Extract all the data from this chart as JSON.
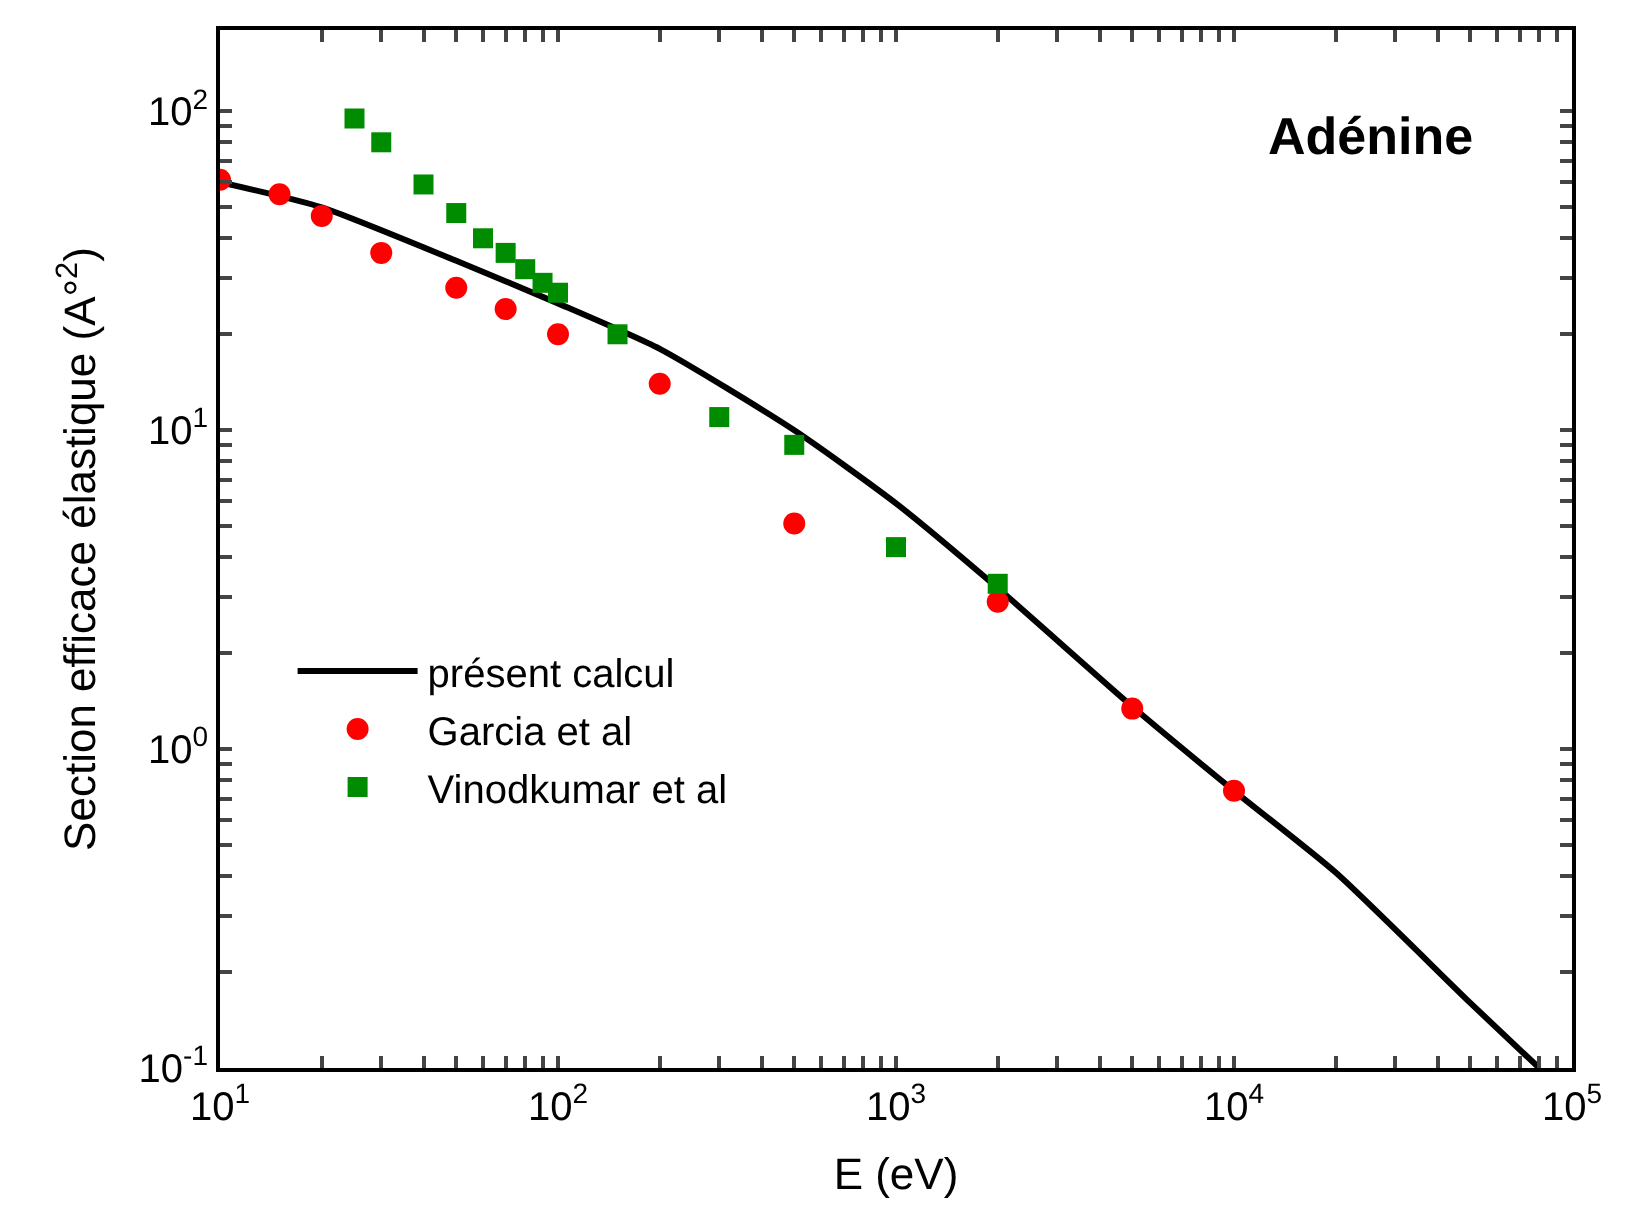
{
  "chart_data": {
    "type": "scatter",
    "title": "Adénine",
    "xlabel": "E (eV)",
    "ylabel": "Section efficace élastique (A°$^{2}$)",
    "log": "xy",
    "legend": "left",
    "xlim": [
      10,
      100000
    ],
    "ylim": [
      0.1,
      180
    ],
    "xticks": [
      {
        "value": 10,
        "label": "10$^{1}$"
      },
      {
        "value": 100,
        "label": "10$^{2}$"
      },
      {
        "value": 1000,
        "label": "10$^{3}$"
      },
      {
        "value": 10000,
        "label": "10$^{4}$"
      },
      {
        "value": 100000,
        "label": "10$^{5}$"
      },
      {
        "value": 20,
        "label": null
      },
      {
        "value": 30,
        "label": null
      },
      {
        "value": 40,
        "label": null
      },
      {
        "value": 50,
        "label": null
      },
      {
        "value": 60,
        "label": null
      },
      {
        "value": 70,
        "label": null
      },
      {
        "value": 80,
        "label": null
      },
      {
        "value": 90,
        "label": null
      },
      {
        "value": 200,
        "label": null
      },
      {
        "value": 300,
        "label": null
      },
      {
        "value": 400,
        "label": null
      },
      {
        "value": 500,
        "label": null
      },
      {
        "value": 600,
        "label": null
      },
      {
        "value": 700,
        "label": null
      },
      {
        "value": 800,
        "label": null
      },
      {
        "value": 900,
        "label": null
      },
      {
        "value": 2000,
        "label": null
      },
      {
        "value": 3000,
        "label": null
      },
      {
        "value": 4000,
        "label": null
      },
      {
        "value": 5000,
        "label": null
      },
      {
        "value": 6000,
        "label": null
      },
      {
        "value": 7000,
        "label": null
      },
      {
        "value": 8000,
        "label": null
      },
      {
        "value": 9000,
        "label": null
      },
      {
        "value": 20000,
        "label": null
      },
      {
        "value": 30000,
        "label": null
      },
      {
        "value": 40000,
        "label": null
      },
      {
        "value": 50000,
        "label": null
      },
      {
        "value": 60000,
        "label": null
      },
      {
        "value": 70000,
        "label": null
      },
      {
        "value": 80000,
        "label": null
      },
      {
        "value": 90000,
        "label": null
      }
    ],
    "yticks": [
      {
        "value": 0.1,
        "label": "10$^{-1}$"
      },
      {
        "value": 1,
        "label": "10$^{0}$"
      },
      {
        "value": 10,
        "label": "10$^{1}$"
      },
      {
        "value": 100,
        "label": "10$^{2}$"
      },
      {
        "value": 0.2,
        "label": null
      },
      {
        "value": 0.3,
        "label": null
      },
      {
        "value": 0.4,
        "label": null
      },
      {
        "value": 0.5,
        "label": null
      },
      {
        "value": 0.6,
        "label": null
      },
      {
        "value": 0.7,
        "label": null
      },
      {
        "value": 0.8,
        "label": null
      },
      {
        "value": 0.9,
        "label": null
      },
      {
        "value": 2,
        "label": null
      },
      {
        "value": 3,
        "label": null
      },
      {
        "value": 4,
        "label": null
      },
      {
        "value": 5,
        "label": null
      },
      {
        "value": 6,
        "label": null
      },
      {
        "value": 7,
        "label": null
      },
      {
        "value": 8,
        "label": null
      },
      {
        "value": 9,
        "label": null
      },
      {
        "value": 20,
        "label": null
      },
      {
        "value": 30,
        "label": null
      },
      {
        "value": 40,
        "label": null
      },
      {
        "value": 50,
        "label": null
      },
      {
        "value": 60,
        "label": null
      },
      {
        "value": 70,
        "label": null
      },
      {
        "value": 80,
        "label": null
      },
      {
        "value": 90,
        "label": null
      }
    ],
    "series": [
      {
        "name": "présent calcul",
        "type": "line",
        "color": "#000000",
        "marker": "none",
        "line_style": "solid",
        "x": [
          10,
          20,
          50,
          100,
          200,
          500,
          1000,
          2000,
          5000,
          10000,
          20000,
          50000,
          80000
        ],
        "values": [
          60,
          50,
          34,
          25,
          18,
          10,
          5.9,
          3.2,
          1.36,
          0.74,
          0.41,
          0.16,
          0.1
        ]
      },
      {
        "name": "Garcia et al",
        "color": "#ff0000",
        "marker": "circle",
        "x": [
          10,
          15,
          20,
          30,
          50,
          70,
          100,
          200,
          500,
          2000,
          5000,
          10000
        ],
        "values": [
          61,
          55,
          47,
          36,
          28,
          24,
          20,
          14,
          5.1,
          2.9,
          1.34,
          0.74
        ]
      },
      {
        "name": "Vinodkumar et al",
        "color": "#008c00",
        "marker": "square",
        "x": [
          25,
          30,
          40,
          50,
          60,
          70,
          80,
          90,
          100,
          150,
          300,
          500,
          1000,
          2000
        ],
        "values": [
          95,
          80,
          59,
          48,
          40,
          36,
          32,
          29,
          27,
          20,
          11,
          9.0,
          4.3,
          3.3
        ]
      }
    ]
  }
}
